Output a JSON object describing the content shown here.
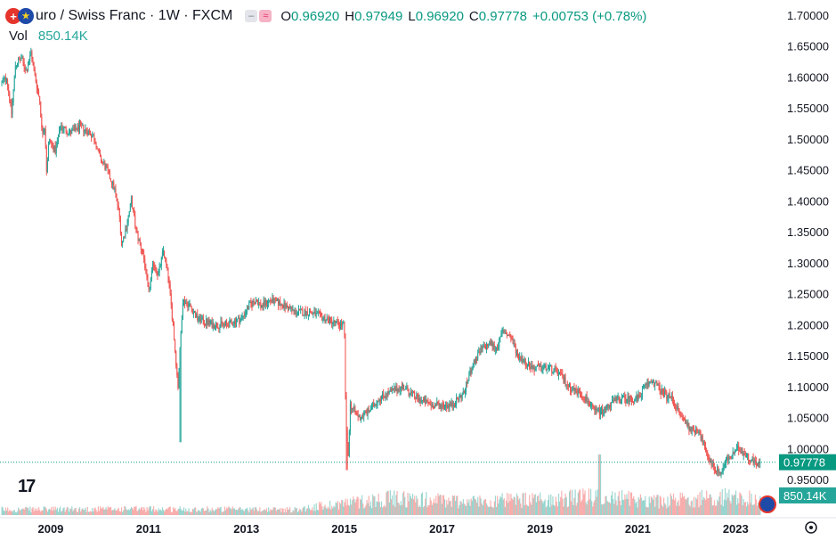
{
  "header": {
    "title": "uro / Swiss Franc · 1W · FXCM",
    "flag_icons": [
      "swiss-flag-icon",
      "eu-flag-icon"
    ],
    "ohlc": [
      {
        "k": "O",
        "v": "0.96920"
      },
      {
        "k": "H",
        "v": "0.97949"
      },
      {
        "k": "L",
        "v": "0.96920"
      },
      {
        "k": "C",
        "v": "0.97778"
      },
      {
        "k": "",
        "v": "+0.00753 (+0.78%)"
      }
    ],
    "vol_label": "Vol",
    "vol_value": "850.14K"
  },
  "chart_data": {
    "type": "candlestick",
    "price_axis": {
      "range": [
        0.925,
        1.715
      ],
      "ticks": [
        "1.70000",
        "1.65000",
        "1.60000",
        "1.55000",
        "1.50000",
        "1.45000",
        "1.40000",
        "1.35000",
        "1.30000",
        "1.25000",
        "1.20000",
        "1.15000",
        "1.10000",
        "1.05000",
        "1.00000",
        "0.95000"
      ]
    },
    "time_axis": {
      "range": [
        2008.0,
        2023.85
      ],
      "ticks": [
        "2009",
        "2011",
        "2013",
        "2015",
        "2017",
        "2019",
        "2021",
        "2023"
      ]
    },
    "last_price": {
      "value": 0.97778,
      "label": "0.97778"
    },
    "last_volume_label": "850.14K",
    "path": [
      [
        2008.0,
        1.59
      ],
      [
        2008.1,
        1.6
      ],
      [
        2008.2,
        1.54
      ],
      [
        2008.28,
        1.62
      ],
      [
        2008.4,
        1.63
      ],
      [
        2008.5,
        1.61
      ],
      [
        2008.6,
        1.64
      ],
      [
        2008.68,
        1.6
      ],
      [
        2008.78,
        1.56
      ],
      [
        2008.82,
        1.51
      ],
      [
        2008.88,
        1.52
      ],
      [
        2008.92,
        1.44
      ],
      [
        2008.96,
        1.5
      ],
      [
        2009.1,
        1.48
      ],
      [
        2009.2,
        1.52
      ],
      [
        2009.4,
        1.51
      ],
      [
        2009.6,
        1.52
      ],
      [
        2009.8,
        1.51
      ],
      [
        2009.9,
        1.5
      ],
      [
        2010.0,
        1.47
      ],
      [
        2010.15,
        1.45
      ],
      [
        2010.3,
        1.42
      ],
      [
        2010.4,
        1.38
      ],
      [
        2010.45,
        1.33
      ],
      [
        2010.55,
        1.36
      ],
      [
        2010.65,
        1.4
      ],
      [
        2010.75,
        1.35
      ],
      [
        2010.9,
        1.31
      ],
      [
        2011.0,
        1.25
      ],
      [
        2011.1,
        1.3
      ],
      [
        2011.2,
        1.28
      ],
      [
        2011.3,
        1.32
      ],
      [
        2011.4,
        1.28
      ],
      [
        2011.5,
        1.2
      ],
      [
        2011.55,
        1.15
      ],
      [
        2011.6,
        1.1
      ],
      [
        2011.65,
        1.17
      ],
      [
        2011.7,
        1.24
      ],
      [
        2011.85,
        1.23
      ],
      [
        2012.0,
        1.21
      ],
      [
        2012.3,
        1.2
      ],
      [
        2012.6,
        1.2
      ],
      [
        2012.9,
        1.21
      ],
      [
        2013.05,
        1.23
      ],
      [
        2013.2,
        1.24
      ],
      [
        2013.3,
        1.23
      ],
      [
        2013.5,
        1.24
      ],
      [
        2013.8,
        1.23
      ],
      [
        2014.0,
        1.22
      ],
      [
        2014.3,
        1.22
      ],
      [
        2014.6,
        1.21
      ],
      [
        2014.9,
        1.2
      ],
      [
        2015.0,
        1.2
      ],
      [
        2015.03,
        1.05
      ],
      [
        2015.08,
        0.98
      ],
      [
        2015.12,
        1.07
      ],
      [
        2015.3,
        1.05
      ],
      [
        2015.5,
        1.06
      ],
      [
        2015.7,
        1.08
      ],
      [
        2015.9,
        1.09
      ],
      [
        2016.2,
        1.1
      ],
      [
        2016.5,
        1.08
      ],
      [
        2016.8,
        1.07
      ],
      [
        2017.0,
        1.07
      ],
      [
        2017.2,
        1.07
      ],
      [
        2017.45,
        1.09
      ],
      [
        2017.6,
        1.13
      ],
      [
        2017.8,
        1.16
      ],
      [
        2018.0,
        1.17
      ],
      [
        2018.1,
        1.16
      ],
      [
        2018.25,
        1.19
      ],
      [
        2018.4,
        1.18
      ],
      [
        2018.55,
        1.15
      ],
      [
        2018.7,
        1.14
      ],
      [
        2018.85,
        1.13
      ],
      [
        2019.0,
        1.13
      ],
      [
        2019.2,
        1.13
      ],
      [
        2019.4,
        1.12
      ],
      [
        2019.6,
        1.1
      ],
      [
        2019.8,
        1.09
      ],
      [
        2019.95,
        1.08
      ],
      [
        2020.1,
        1.06
      ],
      [
        2020.3,
        1.06
      ],
      [
        2020.4,
        1.07
      ],
      [
        2020.6,
        1.08
      ],
      [
        2020.8,
        1.08
      ],
      [
        2021.0,
        1.08
      ],
      [
        2021.15,
        1.1
      ],
      [
        2021.3,
        1.11
      ],
      [
        2021.5,
        1.09
      ],
      [
        2021.7,
        1.08
      ],
      [
        2021.9,
        1.05
      ],
      [
        2022.1,
        1.03
      ],
      [
        2022.25,
        1.03
      ],
      [
        2022.4,
        0.99
      ],
      [
        2022.55,
        0.97
      ],
      [
        2022.7,
        0.96
      ],
      [
        2022.8,
        0.98
      ],
      [
        2022.95,
        0.99
      ],
      [
        2023.05,
        1.0
      ],
      [
        2023.2,
        0.99
      ],
      [
        2023.35,
        0.98
      ],
      [
        2023.5,
        0.975
      ]
    ],
    "spikes": [
      {
        "x": 2011.65,
        "low": 1.01
      },
      {
        "x": 2015.05,
        "low": 0.965
      }
    ],
    "candle_count": 780,
    "volume_envelope": [
      [
        2008.0,
        0.18
      ],
      [
        2011.0,
        0.2
      ],
      [
        2014.0,
        0.18
      ],
      [
        2015.0,
        0.4
      ],
      [
        2016.0,
        0.55
      ],
      [
        2017.5,
        0.45
      ],
      [
        2019.0,
        0.5
      ],
      [
        2020.2,
        0.6
      ],
      [
        2021.5,
        0.45
      ],
      [
        2022.7,
        0.6
      ],
      [
        2023.5,
        0.5
      ]
    ],
    "volume_spikes": [
      {
        "x": 2020.22,
        "h": 1.7
      }
    ],
    "volume_max": 1.75,
    "colors": {
      "up": "#26a69a",
      "down": "#ef5350",
      "last": "#089981"
    }
  }
}
